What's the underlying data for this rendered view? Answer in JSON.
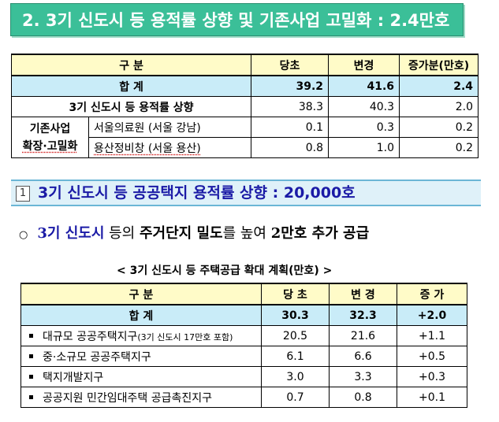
{
  "section_title": "2. 3기 신도시 등 용적률 상향 및 기존사업 고밀화 : 2.4만호",
  "table1": {
    "headers": [
      "구 분",
      "당초",
      "변경",
      "증가분(만호)"
    ],
    "total": {
      "label": "합 계",
      "before": "39.2",
      "after": "41.6",
      "inc": "2.4"
    },
    "row1": {
      "label": "3기 신도시 등 용적률 상향",
      "before": "38.3",
      "after": "40.3",
      "inc": "2.0"
    },
    "group_label_line1": "기존사업",
    "group_label_line2": "확장·고밀화",
    "row2": {
      "label": "서울의료원 (서울 강남)",
      "before": "0.1",
      "after": "0.3",
      "inc": "0.2"
    },
    "row3": {
      "label": "용산정비창 (서울 용산)",
      "before": "0.8",
      "after": "1.0",
      "inc": "0.2"
    }
  },
  "subsection": {
    "number": "1",
    "title": "3기 신도시 등 공공택지 용적률 상향 : 20,000호"
  },
  "bullet": {
    "symbol": "○",
    "highlight": "3기 신도시",
    "rest_a": " 등의 ",
    "bold1": "주거단지 밀도",
    "rest_b": "를 높여 ",
    "bold2": "2만호 추가 공급"
  },
  "caption": "< 3기 신도시 등 주택공급 확대 계획(만호) >",
  "table2": {
    "headers": [
      "구 분",
      "당 초",
      "변 경",
      "증 가"
    ],
    "total": {
      "label": "합 계",
      "before": "30.3",
      "after": "32.3",
      "inc": "+2.0"
    },
    "rows": [
      {
        "label": "대규모 공공주택지구",
        "note": "(3기 신도시 17만호 포함)",
        "before": "20.5",
        "after": "21.6",
        "inc": "+1.1"
      },
      {
        "label": "중·소규모 공공주택지구",
        "note": "",
        "before": "6.1",
        "after": "6.6",
        "inc": "+0.5"
      },
      {
        "label": "택지개발지구",
        "note": "",
        "before": "3.0",
        "after": "3.3",
        "inc": "+0.3"
      },
      {
        "label": "공공지원 민간임대주택 공급촉진지구",
        "note": "",
        "before": "0.7",
        "after": "0.8",
        "inc": "+0.1"
      }
    ]
  }
}
